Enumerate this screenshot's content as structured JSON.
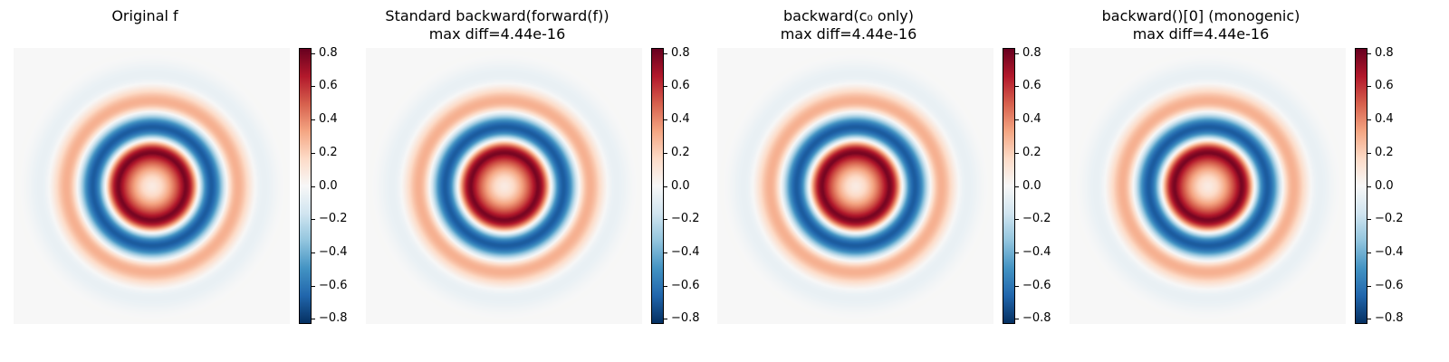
{
  "chart_data": [
    {
      "type": "heatmap",
      "title": "Original f",
      "subtitle": "",
      "colormap": "RdBu_r",
      "clim": [
        -0.83,
        0.83
      ],
      "colorbar_ticks": [
        "0.8",
        "0.6",
        "0.4",
        "0.2",
        "0.0",
        "−0.2",
        "−0.4",
        "−0.6",
        "−0.8"
      ],
      "colorbar_values": [
        0.8,
        0.6,
        0.4,
        0.2,
        0.0,
        -0.2,
        -0.4,
        -0.6,
        -0.8
      ]
    },
    {
      "type": "heatmap",
      "title": "Standard backward(forward(f))",
      "subtitle": "max diff=4.44e-16",
      "colormap": "RdBu_r",
      "clim": [
        -0.83,
        0.83
      ],
      "colorbar_ticks": [
        "0.8",
        "0.6",
        "0.4",
        "0.2",
        "0.0",
        "−0.2",
        "−0.4",
        "−0.6",
        "−0.8"
      ],
      "colorbar_values": [
        0.8,
        0.6,
        0.4,
        0.2,
        0.0,
        -0.2,
        -0.4,
        -0.6,
        -0.8
      ]
    },
    {
      "type": "heatmap",
      "title": "backward(c₀ only)",
      "subtitle": "max diff=4.44e-16",
      "colormap": "RdBu_r",
      "clim": [
        -0.83,
        0.83
      ],
      "colorbar_ticks": [
        "0.8",
        "0.6",
        "0.4",
        "0.2",
        "0.0",
        "−0.2",
        "−0.4",
        "−0.6",
        "−0.8"
      ],
      "colorbar_values": [
        0.8,
        0.6,
        0.4,
        0.2,
        0.0,
        -0.2,
        -0.4,
        -0.6,
        -0.8
      ]
    },
    {
      "type": "heatmap",
      "title": "backward()[0] (monogenic)",
      "subtitle": "max diff=4.44e-16",
      "colormap": "RdBu_r",
      "clim": [
        -0.83,
        0.83
      ],
      "colorbar_ticks": [
        "0.8",
        "0.6",
        "0.4",
        "0.2",
        "0.0",
        "−0.2",
        "−0.4",
        "−0.6",
        "−0.8"
      ],
      "colorbar_values": [
        0.8,
        0.6,
        0.4,
        0.2,
        0.0,
        -0.2,
        -0.4,
        -0.6,
        -0.8
      ]
    }
  ],
  "colors": {
    "colormap_stops": [
      "#053061",
      "#2166ac",
      "#4393c3",
      "#92c5de",
      "#d1e5f0",
      "#f7f7f7",
      "#fddbc7",
      "#f4a582",
      "#d6604d",
      "#b2182b",
      "#67001f"
    ]
  }
}
